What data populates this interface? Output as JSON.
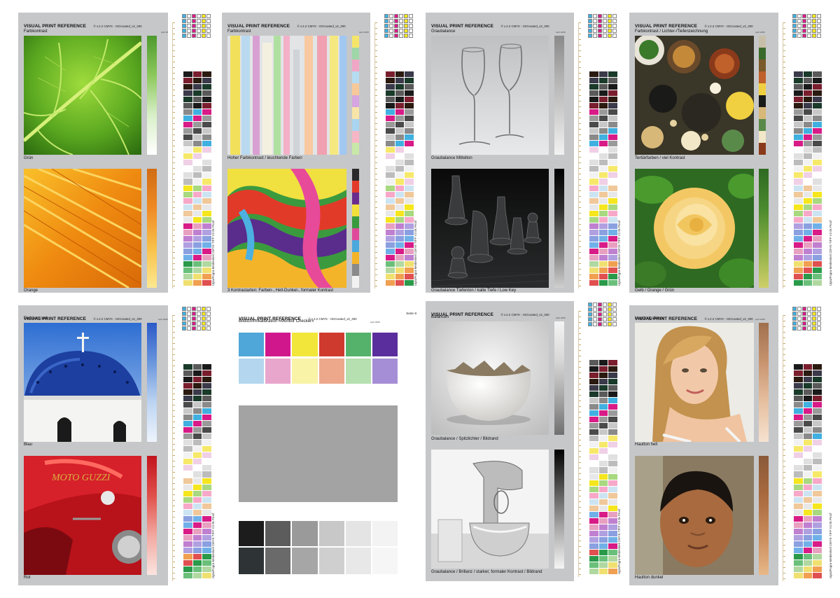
{
  "common": {
    "brand": "VISUAL PRINT REFERENCE",
    "version": "© v.2.2 CMYK - ISOcoated_v2_300",
    "date": "April 2008",
    "vertical_note": "Ugra/Fogra-Medienkeil CMYK-TIFF V3 ök Proof"
  },
  "pages": [
    {
      "id": "page-3",
      "page_label": "Seite 3",
      "section": "Farbkontrast",
      "caption_top": "Grün",
      "caption_bottom": "Orange"
    },
    {
      "id": "page-2",
      "page_label": "Seite 2",
      "section": "Farbkontrast",
      "caption_top": "Hoher Farbkontrast / leuchtende Farben",
      "caption_bottom": "3 Kontrastarten: Farben-, Hell-Dunkel-, formaler Kontrast"
    },
    {
      "id": "page-6",
      "page_label": "Seite 6",
      "section": "Graubalance",
      "caption_top": "Graubalance Mittelton",
      "caption_bottom": "Graubalance Tiefenton / kalte Tiefe / Low Key"
    },
    {
      "id": "page-5",
      "page_label": "Seite 5",
      "section": "Farbkontrast / Lichter-/Tiefenzeichnung",
      "caption_top": "Tertiärfarben / viel Kontrast",
      "caption_bottom": "Gelb / Orange / Grün"
    },
    {
      "id": "page-4",
      "page_label": "Seite 4",
      "section": "Farbkontrast",
      "caption_top": "Blau",
      "caption_bottom": "Rot"
    },
    {
      "id": "page-8",
      "page_label": "Seite 8",
      "section": "Bildschirmkalibration «Monitor Checker»",
      "caption_top": "",
      "caption_bottom": ""
    },
    {
      "id": "page-1",
      "page_label": "Seite 1",
      "section": "Balancen",
      "caption_top": "Graubalance / Spitzlichter / Bildrand",
      "caption_bottom": "Graubalance / Brillanz / starker, formaler Kontrast / Bildrand"
    },
    {
      "id": "page-7",
      "page_label": "Seite 7",
      "section": "Hauttonbalance",
      "caption_top": "Hautton hell",
      "caption_bottom": "Hautton dunkel"
    }
  ],
  "monitor_checker": {
    "row1": [
      "#4fa6d8",
      "#d0188c",
      "#f2e63a",
      "#cf3a2e",
      "#55b26a",
      "#5a2e9c"
    ],
    "row2": [
      "#b4d6ee",
      "#e8a6cc",
      "#f8f3a6",
      "#eda88c",
      "#b6e0b0",
      "#a68ed6"
    ],
    "mid_gray": "#a3a3a3",
    "gray_row1": [
      "#1c1c1c",
      "#5c5c5c",
      "#9a9a9a",
      "#c8c8c8",
      "#e4e4e4",
      "#f3f3f3"
    ],
    "gray_row2": [
      "#2e3436",
      "#6a6a6a",
      "#a6a6a6",
      "#cfcfcf",
      "#e8e8e8",
      "#f6f6f6"
    ]
  },
  "colors": {
    "page_bg": "#c6c7c9",
    "cyan": "#40b0e0",
    "magenta": "#d81b87",
    "yellow": "#f5e61e",
    "black": "#1a1a1a"
  }
}
